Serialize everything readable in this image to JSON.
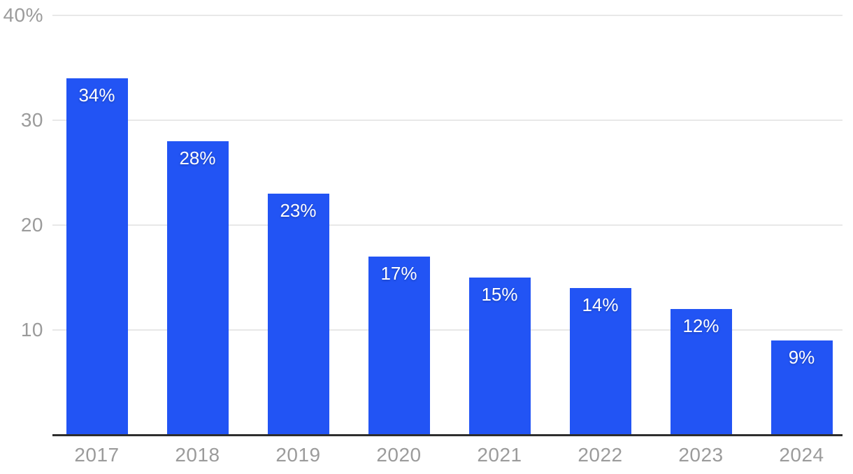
{
  "chart_data": {
    "type": "bar",
    "categories": [
      "2017",
      "2018",
      "2019",
      "2020",
      "2021",
      "2022",
      "2023",
      "2024"
    ],
    "values": [
      34,
      28,
      23,
      17,
      15,
      14,
      12,
      9
    ],
    "value_labels": [
      "34%",
      "28%",
      "23%",
      "17%",
      "15%",
      "14%",
      "12%",
      "9%"
    ],
    "title": "",
    "xlabel": "",
    "ylabel": "",
    "ylim": [
      0,
      40
    ],
    "yticks": [
      {
        "value": 40,
        "label": "40%"
      },
      {
        "value": 30,
        "label": "30"
      },
      {
        "value": 20,
        "label": "20"
      },
      {
        "value": 10,
        "label": "10"
      }
    ],
    "grid": true,
    "legend": "none",
    "colors": {
      "bar": "#2254f4",
      "gridline": "#e8e8e8",
      "axis_line": "#2e2e2e",
      "tick_label": "#9b9b9b",
      "value_label": "#ffffff",
      "background": "#ffffff"
    }
  }
}
